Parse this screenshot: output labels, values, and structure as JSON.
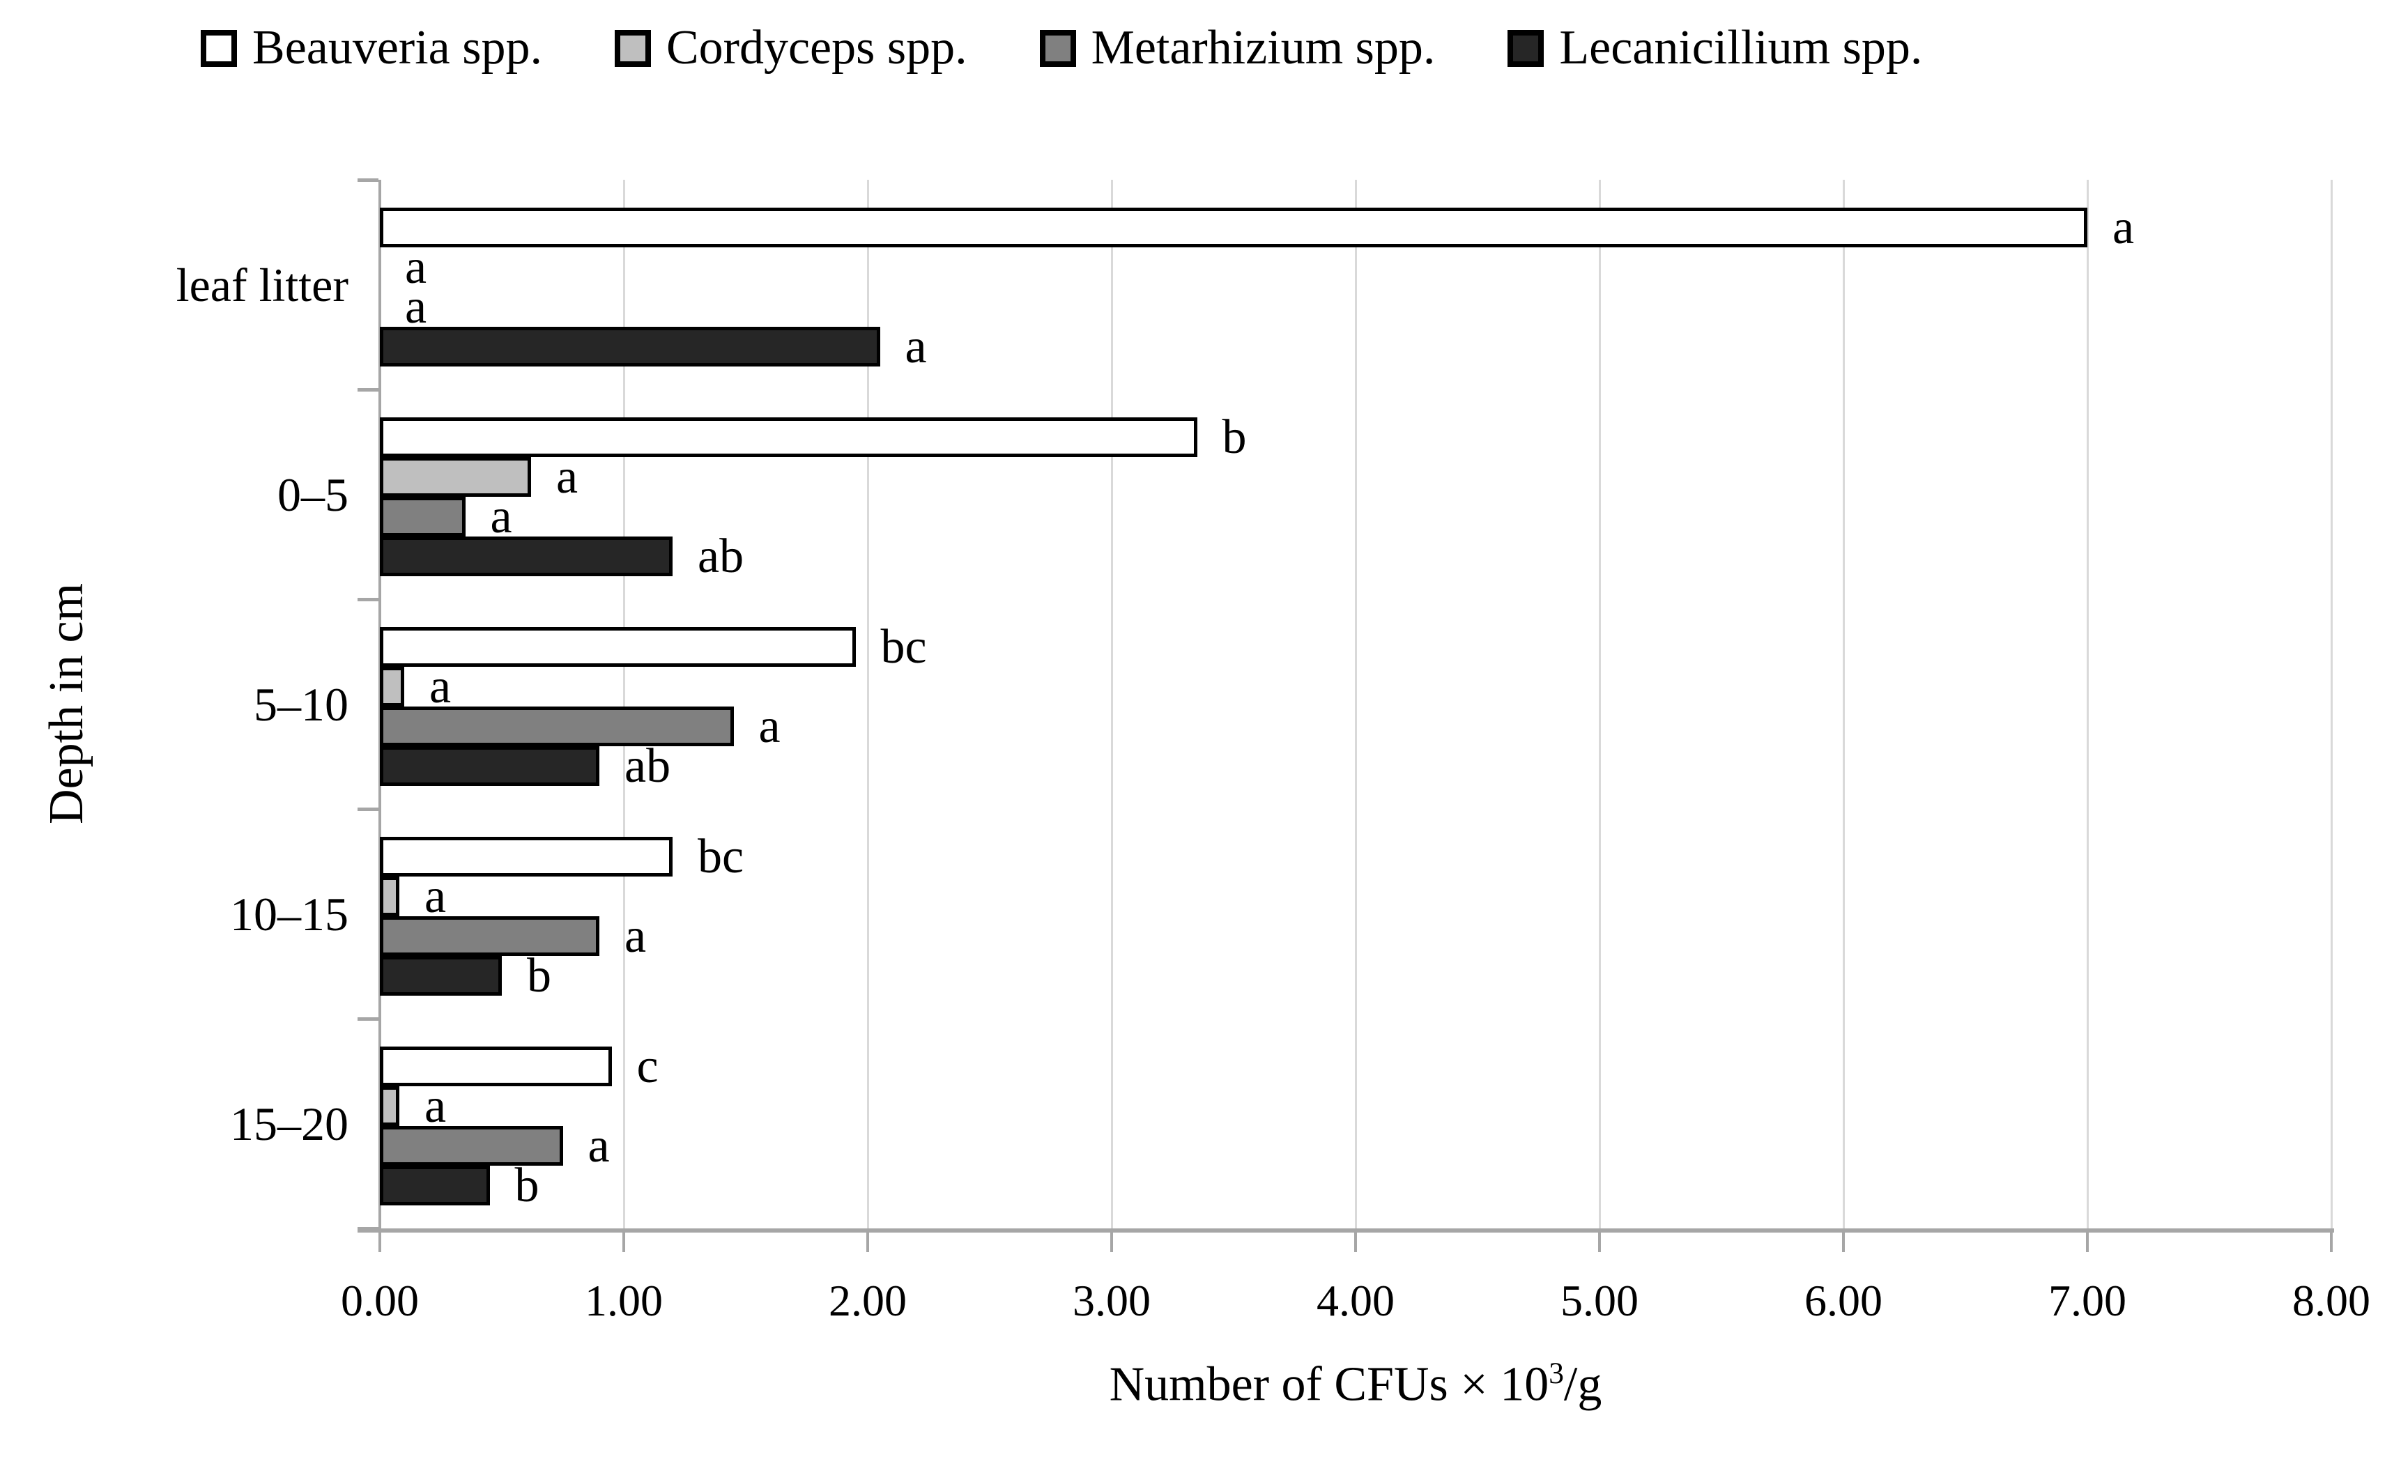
{
  "figure": {
    "background": "#ffffff"
  },
  "chart_data": {
    "type": "bar",
    "orientation": "horizontal",
    "title": "",
    "xlabel": "Number of CFUs × 10³/g",
    "ylabel": "Depth in cm",
    "categories": [
      "leaf litter",
      "0–5",
      "5–10",
      "10–15",
      "15–20"
    ],
    "xlim": [
      0,
      8
    ],
    "xtick_labels": [
      "0.00",
      "1.00",
      "2.00",
      "3.00",
      "4.00",
      "5.00",
      "6.00",
      "7.00",
      "8.00"
    ],
    "grid": "vertical",
    "legend_position": "top",
    "series": [
      {
        "name": "Beauveria spp.",
        "fill": "#ffffff",
        "border": "#000000",
        "values": [
          7.0,
          3.35,
          1.95,
          1.2,
          0.95
        ],
        "sig_labels": [
          "a",
          "b",
          "bc",
          "bc",
          "c"
        ]
      },
      {
        "name": "Cordyceps spp.",
        "fill": "#bfbfbf",
        "border": "#000000",
        "values": [
          0.0,
          0.62,
          0.1,
          0.08,
          0.08
        ],
        "sig_labels": [
          "a",
          "a",
          "a",
          "a",
          "a"
        ]
      },
      {
        "name": "Metarhizium spp.",
        "fill": "#808080",
        "border": "#000000",
        "values": [
          0.0,
          0.35,
          1.45,
          0.9,
          0.75
        ],
        "sig_labels": [
          "a",
          "a",
          "a",
          "a",
          "a"
        ]
      },
      {
        "name": "Lecanicillium spp.",
        "fill": "#262626",
        "border": "#000000",
        "values": [
          2.05,
          1.2,
          0.9,
          0.5,
          0.45
        ],
        "sig_labels": [
          "a",
          "ab",
          "ab",
          "b",
          "b"
        ]
      }
    ],
    "colors": {
      "gridline": "#d9d9d9",
      "axis": "#a6a6a6",
      "bar_border": "#000000",
      "text": "#000000"
    }
  },
  "xaxis_title": {
    "pre": "Number of CFUs × 10",
    "sup": "3",
    "post": "/g"
  }
}
